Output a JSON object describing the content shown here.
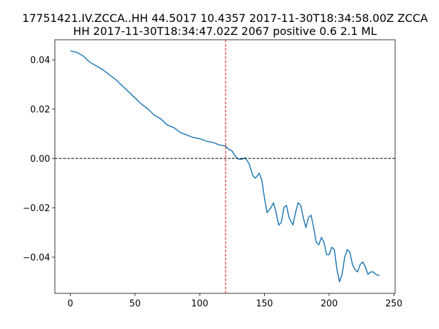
{
  "chart_data": {
    "type": "line",
    "title": [
      "17751421.IV.ZCCA..HH 44.5017 10.4357 2017-11-30T18:34:58.00Z ZCCA",
      "HH 2017-11-30T18:34:47.02Z 2067 positive 0.6 2.1 ML"
    ],
    "series": [
      {
        "color": "#1f77b4",
        "x": [
          0,
          5,
          10,
          15,
          20,
          25,
          30,
          35,
          40,
          45,
          50,
          55,
          60,
          65,
          70,
          75,
          80,
          85,
          90,
          95,
          100,
          105,
          110,
          115,
          120,
          122,
          125,
          128,
          130,
          133,
          135,
          138,
          141,
          143,
          146,
          148,
          150,
          152,
          155,
          157,
          159,
          161,
          163,
          165,
          167,
          169,
          172,
          174,
          176,
          178,
          180,
          182,
          184,
          186,
          188,
          190,
          192,
          194,
          196,
          198,
          200,
          202,
          204,
          206,
          208,
          210,
          212,
          214,
          216,
          218,
          220,
          222,
          224,
          226,
          228,
          230,
          232,
          234,
          236,
          239
        ],
        "values": [
          0.0436,
          0.043,
          0.0415,
          0.039,
          0.0375,
          0.036,
          0.034,
          0.032,
          0.0295,
          0.027,
          0.0245,
          0.022,
          0.02,
          0.0175,
          0.016,
          0.0135,
          0.0125,
          0.0105,
          0.0095,
          0.0085,
          0.008,
          0.007,
          0.0065,
          0.0055,
          0.005,
          0.0038,
          0.003,
          0.0005,
          -0.0003,
          -0.0003,
          0.0003,
          -0.002,
          -0.007,
          -0.008,
          -0.006,
          -0.009,
          -0.016,
          -0.022,
          -0.02,
          -0.018,
          -0.022,
          -0.027,
          -0.026,
          -0.02,
          -0.019,
          -0.024,
          -0.027,
          -0.022,
          -0.018,
          -0.019,
          -0.024,
          -0.028,
          -0.024,
          -0.023,
          -0.028,
          -0.034,
          -0.035,
          -0.032,
          -0.034,
          -0.039,
          -0.039,
          -0.036,
          -0.037,
          -0.045,
          -0.05,
          -0.047,
          -0.04,
          -0.037,
          -0.038,
          -0.043,
          -0.045,
          -0.046,
          -0.043,
          -0.042,
          -0.044,
          -0.047,
          -0.046,
          -0.046,
          -0.047,
          -0.0475
        ]
      }
    ],
    "xlim": [
      -11.95,
      250.95
    ],
    "xticks": [
      0,
      50,
      100,
      150,
      200,
      250
    ],
    "ylim": [
      -0.0547,
      0.0481
    ],
    "yticks": [
      {
        "value": -0.04,
        "label": "−0.04"
      },
      {
        "value": -0.02,
        "label": "−0.02"
      },
      {
        "value": 0,
        "label": "0.00"
      },
      0.02,
      0.04
    ],
    "reference_lines": [
      {
        "axis": "x",
        "value": 120,
        "color": "red"
      },
      {
        "axis": "y",
        "value": 0,
        "color": "black"
      }
    ]
  }
}
